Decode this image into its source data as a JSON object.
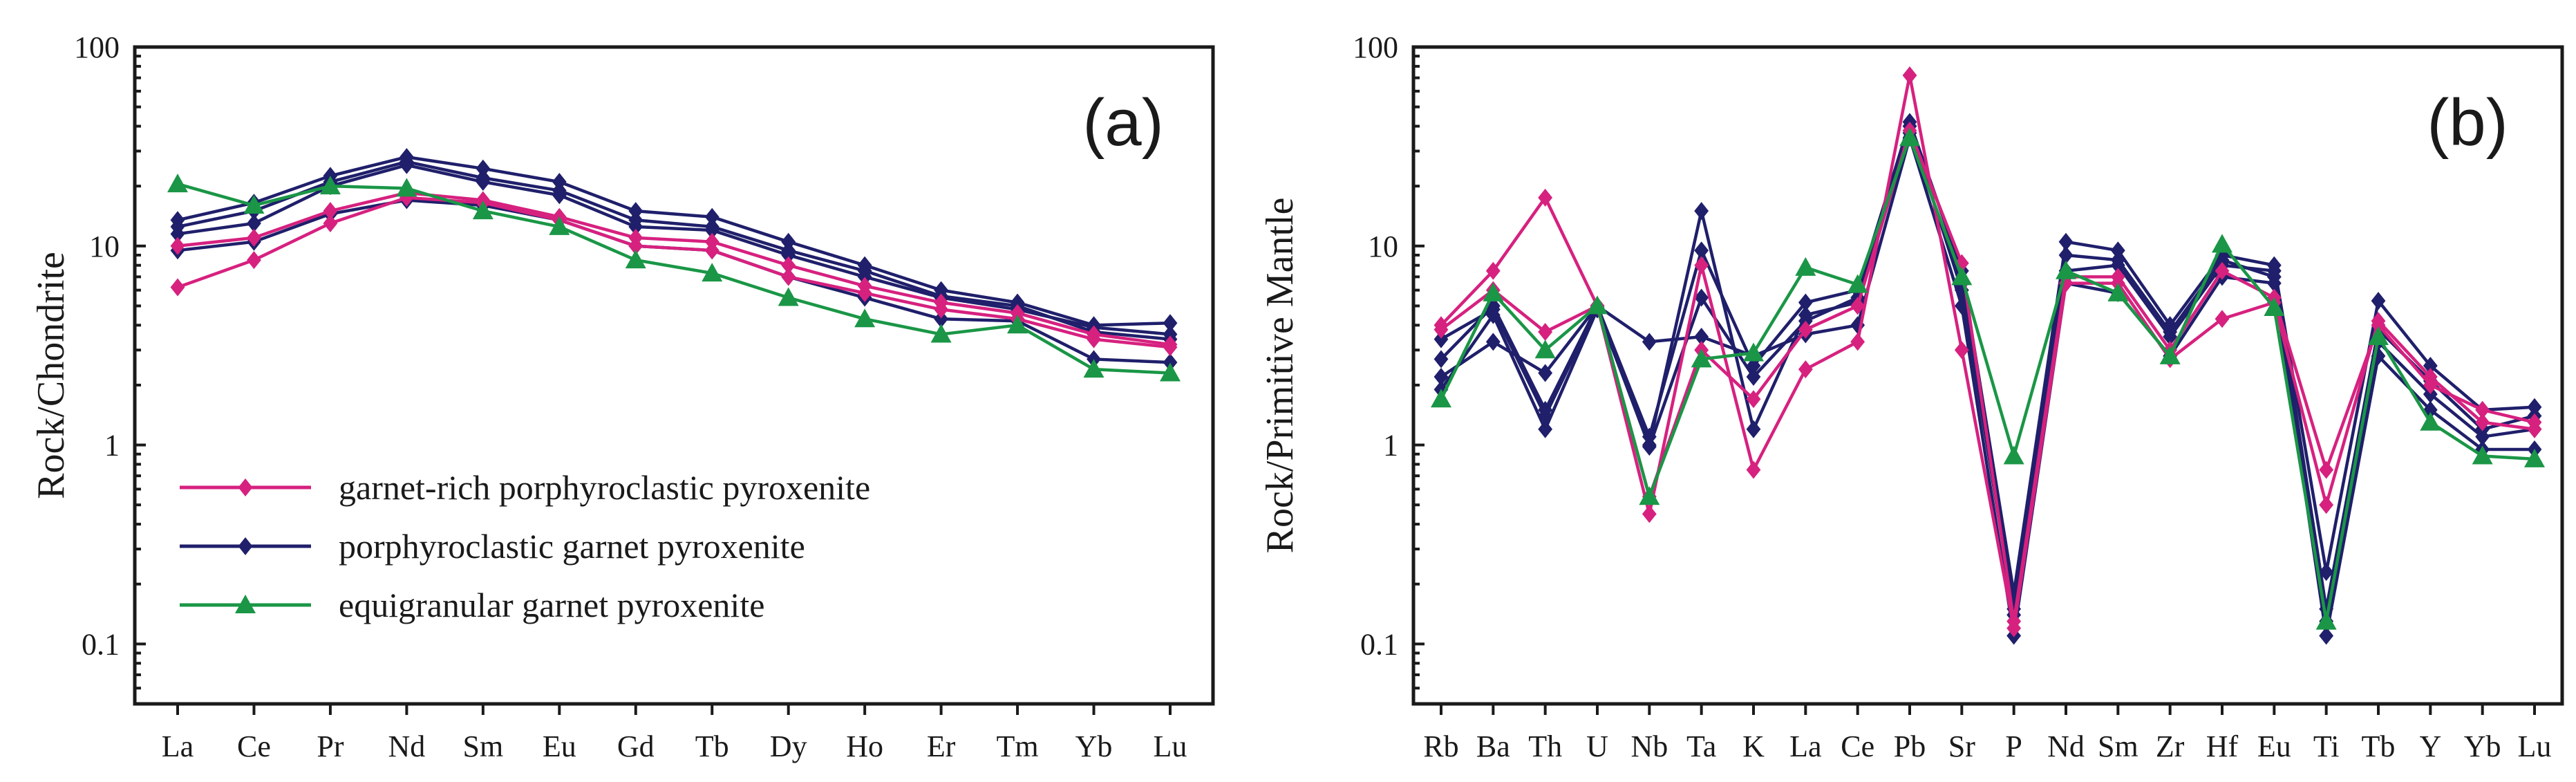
{
  "chart_data": [
    {
      "type": "line",
      "panel_label": "(a)",
      "title": "",
      "xlabel": "",
      "ylabel": "Rock/Chondrite",
      "yscale": "log",
      "ylim": [
        0.05,
        100
      ],
      "yticks": [
        {
          "v": 100,
          "label": "100"
        },
        {
          "v": 10,
          "label": "10"
        },
        {
          "v": 1,
          "label": "1"
        },
        {
          "v": 0.1,
          "label": "0.1"
        }
      ],
      "categories": [
        "La",
        "Ce",
        "Pr",
        "Nd",
        "Sm",
        "Eu",
        "Gd",
        "Tb",
        "Dy",
        "Ho",
        "Er",
        "Tm",
        "Yb",
        "Lu"
      ],
      "legend_position": "bottom-left",
      "legend": [
        {
          "name": "garnet-rich porphyroclastic pyroxenite",
          "color": "#d6217f",
          "marker": "diamond"
        },
        {
          "name": "porphyroclastic garnet pyroxenite",
          "color": "#1f1f6b",
          "marker": "diamond"
        },
        {
          "name": "equigranular garnet pyroxenite",
          "color": "#1a9646",
          "marker": "triangle"
        }
      ],
      "series": [
        {
          "group": 0,
          "values": [
            6.2,
            8.5,
            13,
            17.5,
            16.5,
            13.5,
            10,
            9.5,
            7,
            5.8,
            4.8,
            4.3,
            3.4,
            3.1
          ]
        },
        {
          "group": 0,
          "values": [
            10,
            11,
            15,
            18.5,
            17,
            14,
            11,
            10.5,
            8,
            6.3,
            5.2,
            4.6,
            3.6,
            3.2
          ]
        },
        {
          "group": 1,
          "values": [
            9.5,
            10.5,
            14.5,
            17,
            16,
            13.5,
            10,
            9.5,
            7,
            5.5,
            4.3,
            4.2,
            2.7,
            2.6
          ]
        },
        {
          "group": 1,
          "values": [
            11.5,
            13,
            20,
            25.5,
            21,
            18,
            12.5,
            12,
            9,
            7,
            5.5,
            4.8,
            3.9,
            3.6
          ]
        },
        {
          "group": 1,
          "values": [
            13.5,
            16.5,
            22.5,
            28,
            24.5,
            21,
            15,
            14,
            10.5,
            8,
            6,
            5.2,
            4,
            4.1
          ]
        },
        {
          "group": 1,
          "values": [
            12.5,
            15,
            21,
            26.5,
            22,
            19,
            13.5,
            12.5,
            9.5,
            7.5,
            5.6,
            5,
            3.7,
            3.4
          ]
        },
        {
          "group": 2,
          "values": [
            20.5,
            16,
            20,
            19.5,
            15,
            12.5,
            8.5,
            7.3,
            5.5,
            4.3,
            3.6,
            4,
            2.4,
            2.3
          ]
        }
      ]
    },
    {
      "type": "line",
      "panel_label": "(b)",
      "title": "",
      "xlabel": "",
      "ylabel": "Rock/Primitive Mantle",
      "yscale": "log",
      "ylim": [
        0.05,
        100
      ],
      "yticks": [
        {
          "v": 100,
          "label": "100"
        },
        {
          "v": 10,
          "label": "10"
        },
        {
          "v": 1,
          "label": "1"
        },
        {
          "v": 0.1,
          "label": "0.1"
        }
      ],
      "categories": [
        "Rb",
        "Ba",
        "Th",
        "U",
        "Nb",
        "Ta",
        "K",
        "La",
        "Ce",
        "Pb",
        "Sr",
        "P",
        "Nd",
        "Sm",
        "Zr",
        "Hf",
        "Eu",
        "Ti",
        "Tb",
        "Y",
        "Yb",
        "Lu"
      ],
      "series": [
        {
          "group": 0,
          "values": [
            4,
            7.5,
            17.5,
            5,
            0.45,
            8,
            0.75,
            2.4,
            3.3,
            72,
            3,
            0.12,
            6.5,
            6.5,
            2.7,
            4.3,
            5.2,
            0.5,
            4.2,
            2.2,
            1.3,
            1.2
          ]
        },
        {
          "group": 0,
          "values": [
            3.8,
            6,
            3.7,
            5,
            0.55,
            3,
            1.7,
            3.8,
            5,
            38,
            8.2,
            0.13,
            7,
            7,
            3,
            7.5,
            5.5,
            0.75,
            4,
            2,
            1.5,
            1.3
          ]
        },
        {
          "group": 1,
          "values": [
            2.2,
            3.3,
            2.3,
            5,
            3.3,
            3.5,
            2.8,
            3.6,
            4,
            35,
            5,
            0.11,
            6.5,
            5.8,
            2.8,
            7,
            6.5,
            0.11,
            2.8,
            1.5,
            0.95,
            0.95
          ]
        },
        {
          "group": 1,
          "values": [
            1.9,
            4.5,
            1.2,
            4.8,
            1,
            15,
            1.2,
            4.5,
            5.2,
            40,
            6,
            0.15,
            7.5,
            8,
            3.5,
            8,
            7.5,
            0.15,
            3.8,
            2.1,
            1.2,
            1.4
          ]
        },
        {
          "group": 1,
          "values": [
            2.7,
            5,
            1.5,
            5,
            1.1,
            9.5,
            2.5,
            5.2,
            6,
            42,
            7.5,
            0.18,
            10.5,
            9.5,
            4,
            9,
            8,
            0.23,
            5.3,
            2.5,
            1.5,
            1.55
          ]
        },
        {
          "group": 1,
          "values": [
            3.4,
            4.8,
            1.4,
            4.9,
            0.98,
            5.5,
            2.2,
            4.2,
            5.5,
            37,
            6.5,
            0.14,
            9,
            8.5,
            3.7,
            8.5,
            7,
            0.13,
            3.3,
            1.8,
            1.1,
            1.2
          ]
        },
        {
          "group": 2,
          "values": [
            1.7,
            5.8,
            3,
            5,
            0.55,
            2.7,
            2.9,
            7.8,
            6.4,
            35,
            7,
            0.88,
            7.5,
            5.8,
            2.8,
            10.2,
            4.9,
            0.13,
            3.5,
            1.3,
            0.88,
            0.85
          ]
        }
      ]
    }
  ]
}
